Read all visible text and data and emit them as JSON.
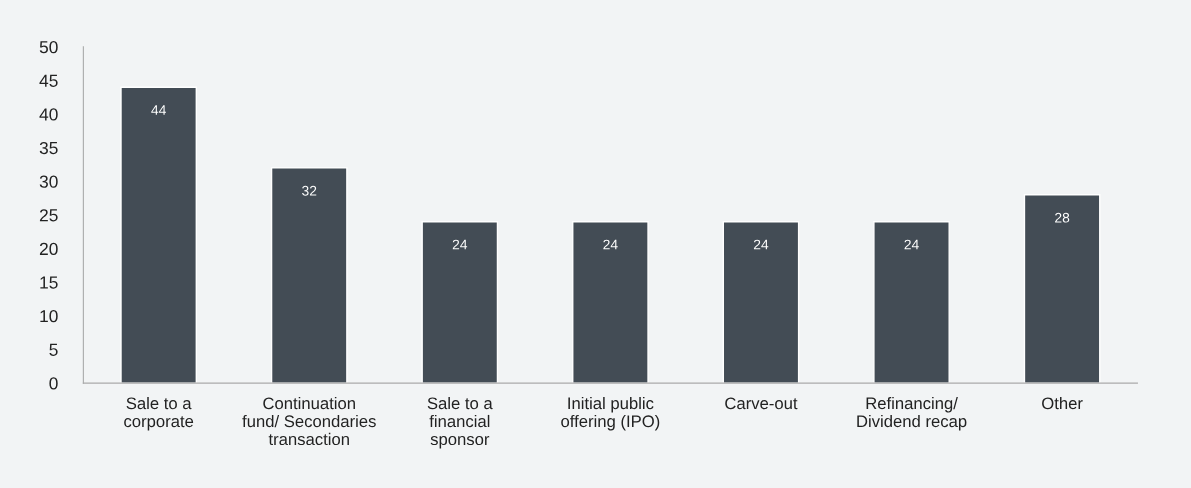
{
  "chart_data": {
    "type": "bar",
    "categories": [
      "Sale to a\ncorporate",
      "Continuation\nfund/ Secondaries\ntransaction",
      "Sale to a\nfinancial\nsponsor",
      "Initial public\noffering (IPO)",
      "Carve-out",
      "Refinancing/\nDividend recap",
      "Other"
    ],
    "values": [
      44,
      32,
      24,
      24,
      24,
      24,
      28
    ],
    "color": "#434c55",
    "ylim": [
      0,
      50
    ],
    "yticks": [
      0,
      5,
      10,
      15,
      20,
      25,
      30,
      35,
      40,
      45,
      50
    ],
    "data_labels": true,
    "grid": false
  }
}
